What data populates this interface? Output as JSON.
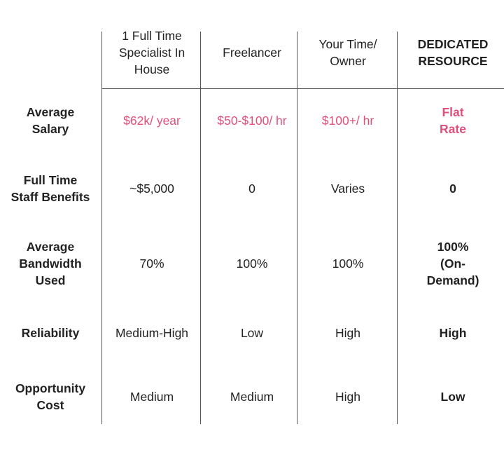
{
  "table": {
    "header": [
      "1 Full Time\nSpecialist In\nHouse",
      "Freelancer",
      "Your Time/\nOwner",
      "DEDICATED\nRESOURCE"
    ],
    "rows": [
      {
        "label": "Average\nSalary",
        "cells": [
          "$62k/ year",
          "$50-$100/ hr",
          "$100+/ hr",
          "Flat Rate"
        ]
      },
      {
        "label": "Full Time\nStaff Benefits",
        "cells": [
          "~$5,000",
          "0",
          "Varies",
          "0"
        ]
      },
      {
        "label": "Average\nBandwidth\nUsed",
        "cells": [
          "70%",
          "100%",
          "100%",
          "100%\n(On-Demand)"
        ]
      },
      {
        "label": "Reliability",
        "cells": [
          "Medium-High",
          "Low",
          "High",
          "High"
        ]
      },
      {
        "label": "Opportunity\nCost",
        "cells": [
          "Medium",
          "Medium",
          "High",
          "Low"
        ]
      }
    ]
  }
}
